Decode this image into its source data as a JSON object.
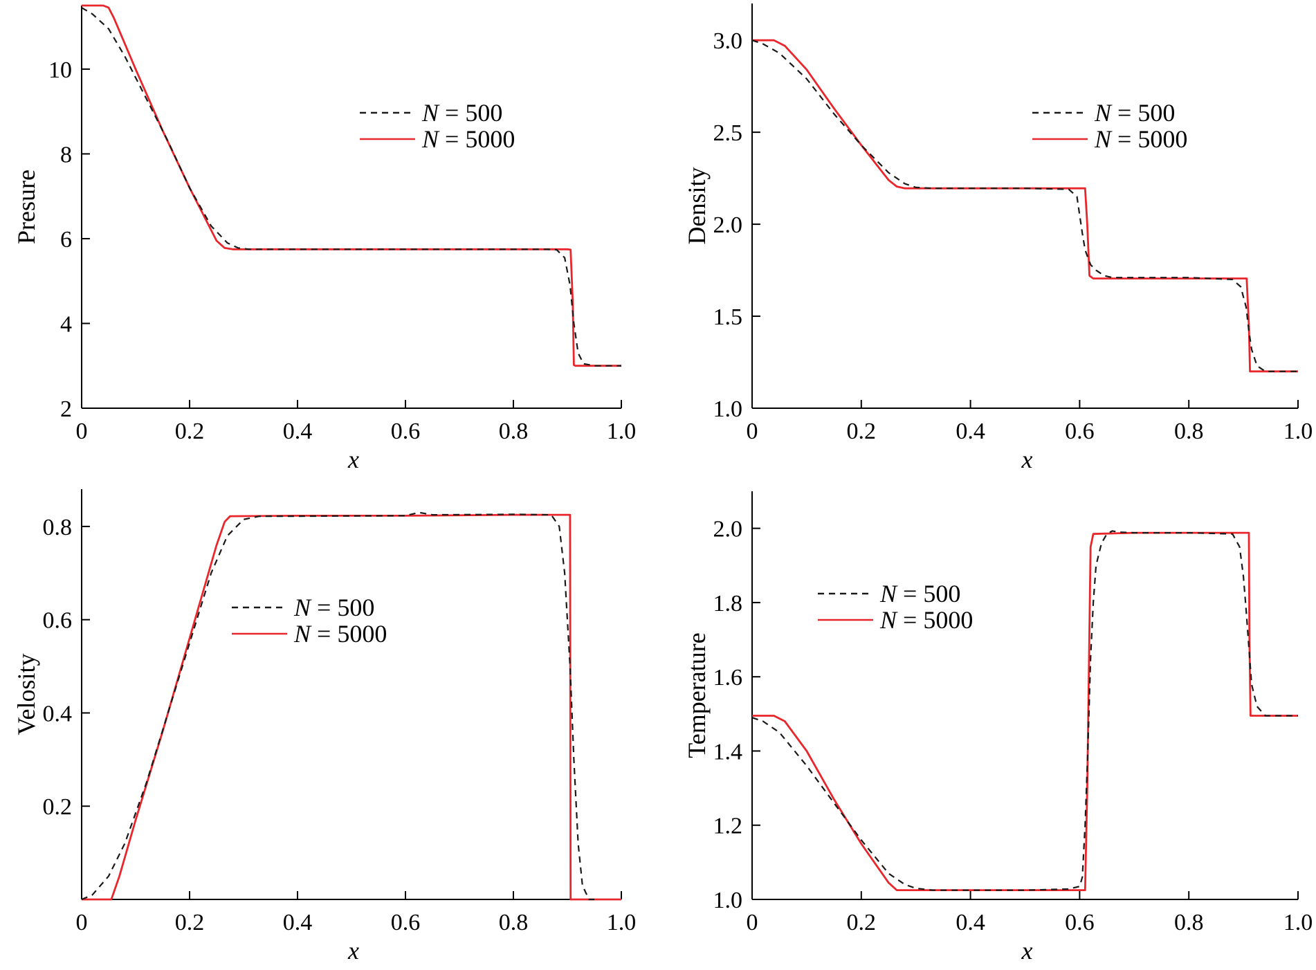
{
  "legend": [
    {
      "name": "N = 500",
      "color": "#1a1a1a",
      "dash": "9,7"
    },
    {
      "name": "N = 5000",
      "color": "#e8262b",
      "dash": ""
    }
  ],
  "chart_data": [
    {
      "type": "line",
      "ylabel": "Presure",
      "xlabel": "x",
      "xlim": [
        0,
        1.0
      ],
      "ylim": [
        2,
        11.5
      ],
      "xticks": [
        0,
        0.2,
        0.4,
        0.6,
        0.8,
        1.0
      ],
      "xtick_labels": [
        "0",
        "0.2",
        "0.4",
        "0.6",
        "0.8",
        "1.0"
      ],
      "yticks": [
        2,
        4,
        6,
        8,
        10
      ],
      "ytick_labels": [
        "2",
        "4",
        "6",
        "8",
        "10"
      ],
      "legend_position": "upper-right",
      "series": [
        {
          "name": "N = 500",
          "x": [
            0,
            0.02,
            0.05,
            0.08,
            0.12,
            0.16,
            0.2,
            0.24,
            0.27,
            0.29,
            0.31,
            0.35,
            0.5,
            0.7,
            0.86,
            0.88,
            0.895,
            0.905,
            0.912,
            0.92,
            0.93,
            0.95,
            1.0
          ],
          "y": [
            11.45,
            11.3,
            10.95,
            10.3,
            9.3,
            8.3,
            7.2,
            6.3,
            5.9,
            5.78,
            5.75,
            5.75,
            5.75,
            5.75,
            5.75,
            5.74,
            5.55,
            4.9,
            4.0,
            3.3,
            3.05,
            3.0,
            3.0
          ]
        },
        {
          "name": "N = 5000",
          "x": [
            0,
            0.04,
            0.05,
            0.06,
            0.1,
            0.15,
            0.2,
            0.25,
            0.265,
            0.28,
            0.4,
            0.6,
            0.8,
            0.9,
            0.906,
            0.91,
            0.912,
            0.915,
            0.95,
            1.0
          ],
          "y": [
            11.5,
            11.5,
            11.45,
            11.2,
            10.0,
            8.55,
            7.2,
            5.95,
            5.78,
            5.75,
            5.75,
            5.75,
            5.75,
            5.75,
            5.74,
            4.5,
            3.02,
            3.0,
            3.0,
            3.0
          ]
        }
      ]
    },
    {
      "type": "line",
      "ylabel": "Density",
      "xlabel": "x",
      "xlim": [
        0,
        1.0
      ],
      "ylim": [
        1.0,
        3.2
      ],
      "xticks": [
        0,
        0.2,
        0.4,
        0.6,
        0.8,
        1.0
      ],
      "xtick_labels": [
        "0",
        "0.2",
        "0.4",
        "0.6",
        "0.8",
        "1.0"
      ],
      "yticks": [
        1.0,
        1.5,
        2.0,
        2.5,
        3.0
      ],
      "ytick_labels": [
        "1.0",
        "1.5",
        "2.0",
        "2.5",
        "3.0"
      ],
      "legend_position": "upper-right",
      "series": [
        {
          "name": "N = 500",
          "x": [
            0,
            0.02,
            0.05,
            0.1,
            0.15,
            0.2,
            0.25,
            0.28,
            0.3,
            0.33,
            0.4,
            0.5,
            0.58,
            0.595,
            0.6,
            0.605,
            0.61,
            0.615,
            0.62,
            0.63,
            0.645,
            0.66,
            0.7,
            0.8,
            0.88,
            0.895,
            0.905,
            0.91,
            0.915,
            0.925,
            0.94,
            1.0
          ],
          "y": [
            3.0,
            2.98,
            2.93,
            2.79,
            2.6,
            2.43,
            2.28,
            2.22,
            2.2,
            2.195,
            2.195,
            2.195,
            2.19,
            2.15,
            2.05,
            1.95,
            1.86,
            1.82,
            1.78,
            1.75,
            1.72,
            1.71,
            1.71,
            1.71,
            1.7,
            1.66,
            1.55,
            1.42,
            1.32,
            1.23,
            1.2,
            1.2
          ]
        },
        {
          "name": "N = 5000",
          "x": [
            0,
            0.04,
            0.06,
            0.1,
            0.15,
            0.2,
            0.25,
            0.265,
            0.28,
            0.4,
            0.5,
            0.61,
            0.614,
            0.618,
            0.625,
            0.7,
            0.8,
            0.906,
            0.91,
            0.912,
            0.95,
            1.0
          ],
          "y": [
            3.0,
            3.0,
            2.97,
            2.84,
            2.63,
            2.43,
            2.24,
            2.205,
            2.195,
            2.195,
            2.195,
            2.195,
            2.0,
            1.72,
            1.705,
            1.705,
            1.705,
            1.705,
            1.45,
            1.2,
            1.2,
            1.2
          ]
        }
      ]
    },
    {
      "type": "line",
      "ylabel": "Velosity",
      "xlabel": "x",
      "xlim": [
        0,
        1.0
      ],
      "ylim": [
        0.0,
        0.88
      ],
      "xticks": [
        0,
        0.2,
        0.4,
        0.6,
        0.8,
        1.0
      ],
      "xtick_labels": [
        "0",
        "0.2",
        "0.4",
        "0.6",
        "0.8",
        "1.0"
      ],
      "yticks": [
        0.2,
        0.4,
        0.6,
        0.8
      ],
      "ytick_labels": [
        "0.2",
        "0.4",
        "0.6",
        "0.8"
      ],
      "legend_position": "center",
      "series": [
        {
          "name": "N = 500",
          "x": [
            0,
            0.02,
            0.05,
            0.08,
            0.12,
            0.16,
            0.2,
            0.24,
            0.27,
            0.3,
            0.33,
            0.4,
            0.6,
            0.625,
            0.65,
            0.8,
            0.87,
            0.885,
            0.895,
            0.905,
            0.912,
            0.92,
            0.928,
            0.94,
            0.95
          ],
          "y": [
            0.0,
            0.01,
            0.05,
            0.12,
            0.25,
            0.4,
            0.55,
            0.7,
            0.78,
            0.815,
            0.822,
            0.822,
            0.823,
            0.83,
            0.825,
            0.826,
            0.825,
            0.8,
            0.7,
            0.5,
            0.3,
            0.12,
            0.03,
            0.0,
            0.0
          ]
        },
        {
          "name": "N = 5000",
          "x": [
            0,
            0.05,
            0.055,
            0.07,
            0.1,
            0.15,
            0.2,
            0.25,
            0.265,
            0.275,
            0.4,
            0.6,
            0.8,
            0.9,
            0.905,
            0.906,
            0.95,
            1.0
          ],
          "y": [
            0.0,
            0.0,
            0.0,
            0.05,
            0.17,
            0.36,
            0.56,
            0.76,
            0.81,
            0.822,
            0.823,
            0.823,
            0.825,
            0.825,
            0.825,
            0.0,
            0.0,
            0.0
          ]
        }
      ]
    },
    {
      "type": "line",
      "ylabel": "Temperature",
      "xlabel": "x",
      "xlim": [
        0,
        1.0
      ],
      "ylim": [
        1.0,
        2.1
      ],
      "xticks": [
        0,
        0.2,
        0.4,
        0.6,
        0.8,
        1.0
      ],
      "xtick_labels": [
        "0",
        "0.2",
        "0.4",
        "0.6",
        "0.8",
        "1.0"
      ],
      "yticks": [
        1.0,
        1.2,
        1.4,
        1.6,
        1.8,
        2.0
      ],
      "ytick_labels": [
        "1.0",
        "1.2",
        "1.4",
        "1.6",
        "1.8",
        "2.0"
      ],
      "legend_position": "upper-center",
      "series": [
        {
          "name": "N = 500",
          "x": [
            0,
            0.02,
            0.05,
            0.1,
            0.15,
            0.2,
            0.25,
            0.28,
            0.3,
            0.33,
            0.4,
            0.5,
            0.58,
            0.6,
            0.605,
            0.61,
            0.615,
            0.62,
            0.625,
            0.63,
            0.64,
            0.65,
            0.66,
            0.67,
            0.7,
            0.8,
            0.88,
            0.893,
            0.9,
            0.905,
            0.91,
            0.915,
            0.925,
            0.94,
            1.0
          ],
          "y": [
            1.49,
            1.48,
            1.45,
            1.36,
            1.26,
            1.16,
            1.07,
            1.04,
            1.03,
            1.025,
            1.025,
            1.025,
            1.028,
            1.035,
            1.06,
            1.2,
            1.4,
            1.65,
            1.8,
            1.9,
            1.96,
            1.985,
            1.993,
            1.99,
            1.988,
            1.988,
            1.985,
            1.95,
            1.87,
            1.78,
            1.68,
            1.58,
            1.52,
            1.495,
            1.495
          ]
        },
        {
          "name": "N = 5000",
          "x": [
            0,
            0.04,
            0.06,
            0.1,
            0.15,
            0.2,
            0.25,
            0.265,
            0.28,
            0.4,
            0.5,
            0.61,
            0.614,
            0.62,
            0.625,
            0.7,
            0.8,
            0.91,
            0.911,
            0.913,
            0.95,
            1.0
          ],
          "y": [
            1.495,
            1.495,
            1.48,
            1.4,
            1.27,
            1.15,
            1.045,
            1.025,
            1.025,
            1.025,
            1.025,
            1.025,
            1.3,
            1.95,
            1.985,
            1.988,
            1.988,
            1.988,
            1.7,
            1.495,
            1.495,
            1.495
          ]
        }
      ]
    }
  ]
}
